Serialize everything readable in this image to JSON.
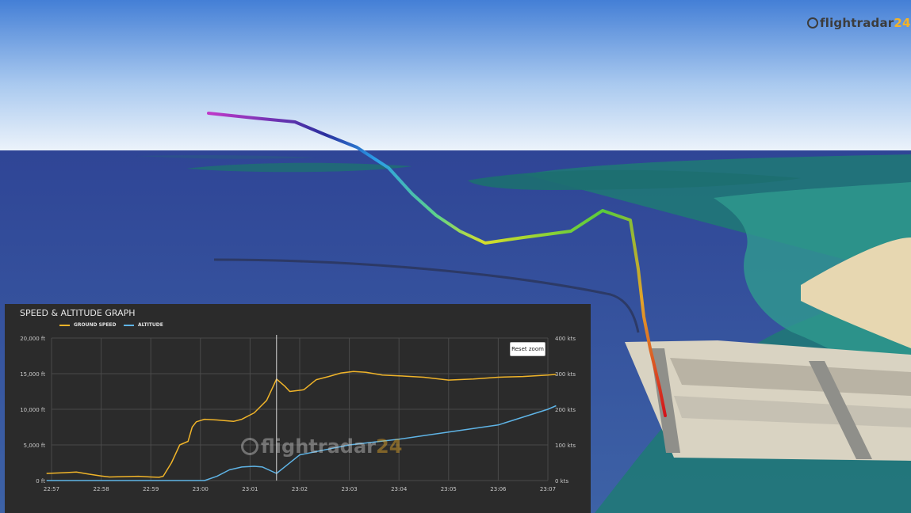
{
  "branding": {
    "name_main": "flightradar",
    "name_accent": "24"
  },
  "graph": {
    "title": "SPEED & ALTITUDE GRAPH",
    "reset_zoom_label": "Reset zoom"
  },
  "colors": {
    "speed": "#f0b429",
    "altitude": "#5fb4e6",
    "panel_bg": "#2b2b2b",
    "grid": "#4a4a4a"
  },
  "chart_data": {
    "type": "line",
    "title": "SPEED & ALTITUDE GRAPH",
    "x_ticks": [
      "22:57",
      "22:58",
      "22:59",
      "23:00",
      "23:01",
      "23:02",
      "23:03",
      "23:04",
      "23:05",
      "23:06",
      "23:07"
    ],
    "xlim": [
      "22:57",
      "23:07"
    ],
    "y_left": {
      "ticks": [
        "0 ft",
        "5,000 ft",
        "10,000 ft",
        "15,000 ft",
        "20,000 ft"
      ],
      "lim": [
        0,
        20000
      ]
    },
    "y_right": {
      "ticks": [
        "0 kts",
        "100 kts",
        "200 kts",
        "300 kts",
        "400 kts"
      ],
      "lim": [
        0,
        400
      ]
    },
    "grid": true,
    "legend_position": "top-left",
    "crosshair_x": "23:01:32",
    "series": [
      {
        "name": "GROUND SPEED",
        "axis": "right",
        "x": [
          "22:56:54",
          "22:57:15",
          "22:57:30",
          "22:57:45",
          "22:58:00",
          "22:58:10",
          "22:58:25",
          "22:58:45",
          "22:59:00",
          "22:59:10",
          "22:59:15",
          "22:59:25",
          "22:59:35",
          "22:59:45",
          "22:59:50",
          "22:59:55",
          "23:00:05",
          "23:00:20",
          "23:00:30",
          "23:00:40",
          "23:00:50",
          "23:01:05",
          "23:01:20",
          "23:01:32",
          "23:01:42",
          "23:01:48",
          "23:02:05",
          "23:02:20",
          "23:02:35",
          "23:02:50",
          "23:03:05",
          "23:03:20",
          "23:03:40",
          "23:04:00",
          "23:04:30",
          "23:05:00",
          "23:05:30",
          "23:06:00",
          "23:06:30",
          "23:07:00",
          "23:07:10"
        ],
        "values": [
          20,
          22,
          24,
          18,
          13,
          10,
          11,
          12,
          10,
          9,
          12,
          50,
          100,
          110,
          150,
          165,
          172,
          170,
          168,
          166,
          172,
          190,
          225,
          285,
          265,
          250,
          255,
          283,
          292,
          302,
          306,
          304,
          296,
          294,
          290,
          282,
          285,
          290,
          292,
          296,
          298
        ]
      },
      {
        "name": "ALTITUDE",
        "axis": "left",
        "x": [
          "22:56:54",
          "22:57:30",
          "22:58:00",
          "22:58:30",
          "22:59:00",
          "22:59:30",
          "22:59:55",
          "23:00:05",
          "23:00:20",
          "23:00:35",
          "23:00:50",
          "23:01:05",
          "23:01:15",
          "23:01:32",
          "23:01:45",
          "23:02:00",
          "23:02:30",
          "23:03:00",
          "23:03:30",
          "23:04:00",
          "23:04:30",
          "23:05:00",
          "23:05:30",
          "23:06:00",
          "23:06:30",
          "23:07:00",
          "23:07:10"
        ],
        "values": [
          0,
          0,
          0,
          0,
          0,
          0,
          0,
          0,
          600,
          1500,
          1900,
          2000,
          1900,
          1000,
          2200,
          3600,
          4300,
          5000,
          5400,
          5800,
          6300,
          6800,
          7300,
          7800,
          8900,
          10000,
          10500
        ]
      }
    ]
  }
}
